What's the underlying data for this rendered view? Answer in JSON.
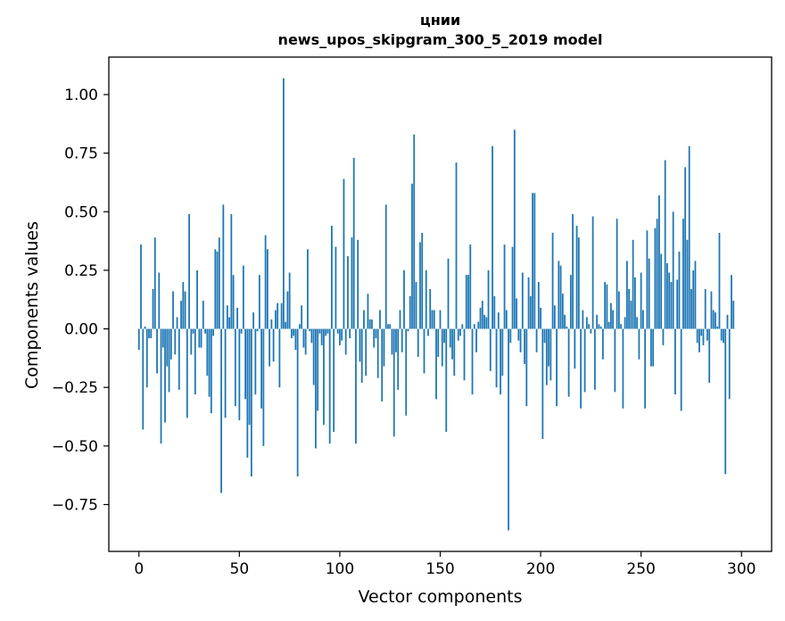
{
  "chart_data": {
    "type": "bar",
    "title_lines": [
      "цнии",
      "news_upos_skipgram_300_5_2019 model"
    ],
    "xlabel": "Vector components",
    "ylabel": "Components values",
    "xlim": [
      -15,
      315
    ],
    "ylim": [
      -0.95,
      1.16
    ],
    "x_ticks": [
      0,
      50,
      100,
      150,
      200,
      250,
      300
    ],
    "x_tick_labels": [
      "0",
      "50",
      "100",
      "150",
      "200",
      "250",
      "300"
    ],
    "y_ticks": [
      1.0,
      0.75,
      0.5,
      0.25,
      0.0,
      -0.25,
      -0.5,
      -0.75
    ],
    "y_tick_labels": [
      "1.00",
      "0.75",
      "0.50",
      "0.25",
      "0.00",
      "−0.25",
      "−0.50",
      "−0.75"
    ],
    "bar_color": "#1f77b4",
    "grid": false,
    "values": [
      -0.09,
      0.36,
      -0.43,
      0.01,
      -0.25,
      -0.04,
      -0.04,
      0.17,
      0.39,
      -0.19,
      0.24,
      -0.49,
      -0.08,
      -0.4,
      -0.16,
      -0.27,
      -0.13,
      0.16,
      -0.11,
      0.05,
      -0.26,
      0.12,
      0.2,
      0.16,
      -0.38,
      0.49,
      -0.11,
      -0.02,
      -0.28,
      0.25,
      -0.08,
      -0.08,
      0.12,
      -0.02,
      -0.2,
      -0.29,
      -0.36,
      -0.03,
      0.34,
      0.33,
      0.39,
      -0.7,
      0.53,
      -0.38,
      0.1,
      0.05,
      0.49,
      0.23,
      -0.33,
      0.09,
      -0.39,
      -0.02,
      0.27,
      -0.3,
      -0.55,
      -0.41,
      -0.63,
      0.07,
      -0.28,
      -0.01,
      0.23,
      -0.34,
      -0.5,
      0.4,
      0.34,
      -0.16,
      0.04,
      -0.14,
      0.08,
      0.11,
      -0.25,
      0.11,
      1.07,
      0.03,
      0.16,
      0.24,
      -0.04,
      -0.03,
      -0.09,
      -0.63,
      0.02,
      0.1,
      -0.08,
      -0.11,
      0.34,
      -0.01,
      -0.06,
      -0.24,
      -0.51,
      -0.35,
      -0.02,
      -0.07,
      -0.41,
      -0.03,
      -0.02,
      -0.49,
      0.44,
      -0.44,
      0.35,
      -0.02,
      -0.07,
      -0.05,
      0.64,
      -0.11,
      0.31,
      -0.04,
      0.39,
      0.73,
      -0.49,
      0.38,
      -0.14,
      -0.23,
      0.08,
      -0.2,
      0.15,
      0.04,
      0.04,
      -0.08,
      -0.04,
      -0.21,
      0.08,
      -0.31,
      -0.16,
      0.53,
      0.02,
      0.02,
      -0.11,
      -0.46,
      -0.1,
      -0.26,
      0.08,
      -0.1,
      0.25,
      -0.37,
      -0.01,
      0.14,
      0.62,
      0.83,
      0.2,
      -0.12,
      0.37,
      0.41,
      -0.19,
      0.25,
      -0.03,
      0.17,
      0.08,
      0.08,
      -0.3,
      -0.12,
      0.08,
      -0.16,
      -0.06,
      -0.44,
      0.3,
      -0.08,
      -0.13,
      -0.2,
      0.71,
      -0.05,
      -0.03,
      0.02,
      -0.22,
      0.23,
      0.23,
      0.36,
      -0.28,
      0.02,
      -0.1,
      0.03,
      0.09,
      0.12,
      0.06,
      0.05,
      0.25,
      -0.18,
      0.78,
      0.14,
      -0.25,
      0.07,
      -0.28,
      -0.2,
      0.36,
      0.08,
      -0.86,
      -0.06,
      0.35,
      0.85,
      0.13,
      -0.05,
      -0.1,
      0.24,
      -0.15,
      -0.33,
      0.22,
      0.14,
      0.58,
      0.58,
      -0.1,
      0.2,
      0.09,
      -0.47,
      -0.06,
      -0.24,
      -0.16,
      -0.22,
      0.41,
      0.1,
      -0.33,
      0.29,
      0.27,
      0.15,
      0.06,
      0.01,
      -0.29,
      0.23,
      0.49,
      -0.17,
      0.44,
      0.39,
      -0.34,
      0.08,
      -0.27,
      0.05,
      0.02,
      -0.02,
      0.48,
      -0.26,
      0.06,
      0.02,
      0.01,
      -0.13,
      0.2,
      0.19,
      0.03,
      0.11,
      0.08,
      -0.27,
      0.47,
      0.16,
      0.02,
      -0.34,
      0.05,
      0.29,
      0.17,
      0.12,
      0.38,
      0.22,
      0.05,
      -0.13,
      0.24,
      0.08,
      -0.34,
      0.42,
      0.3,
      -0.16,
      -0.16,
      0.43,
      0.47,
      0.57,
      0.32,
      -0.07,
      0.72,
      0.28,
      0.24,
      0.2,
      0.5,
      -0.28,
      0.21,
      0.33,
      -0.35,
      0.47,
      0.69,
      0.38,
      0.78,
      0.17,
      0.25,
      0.29,
      -0.06,
      -0.1,
      -0.03,
      -0.07,
      0.17,
      -0.05,
      -0.23,
      0.16,
      0.08,
      0.07,
      0.01,
      0.41,
      -0.05,
      -0.06,
      -0.62,
      0.06,
      -0.3,
      0.23,
      0.12
    ]
  }
}
